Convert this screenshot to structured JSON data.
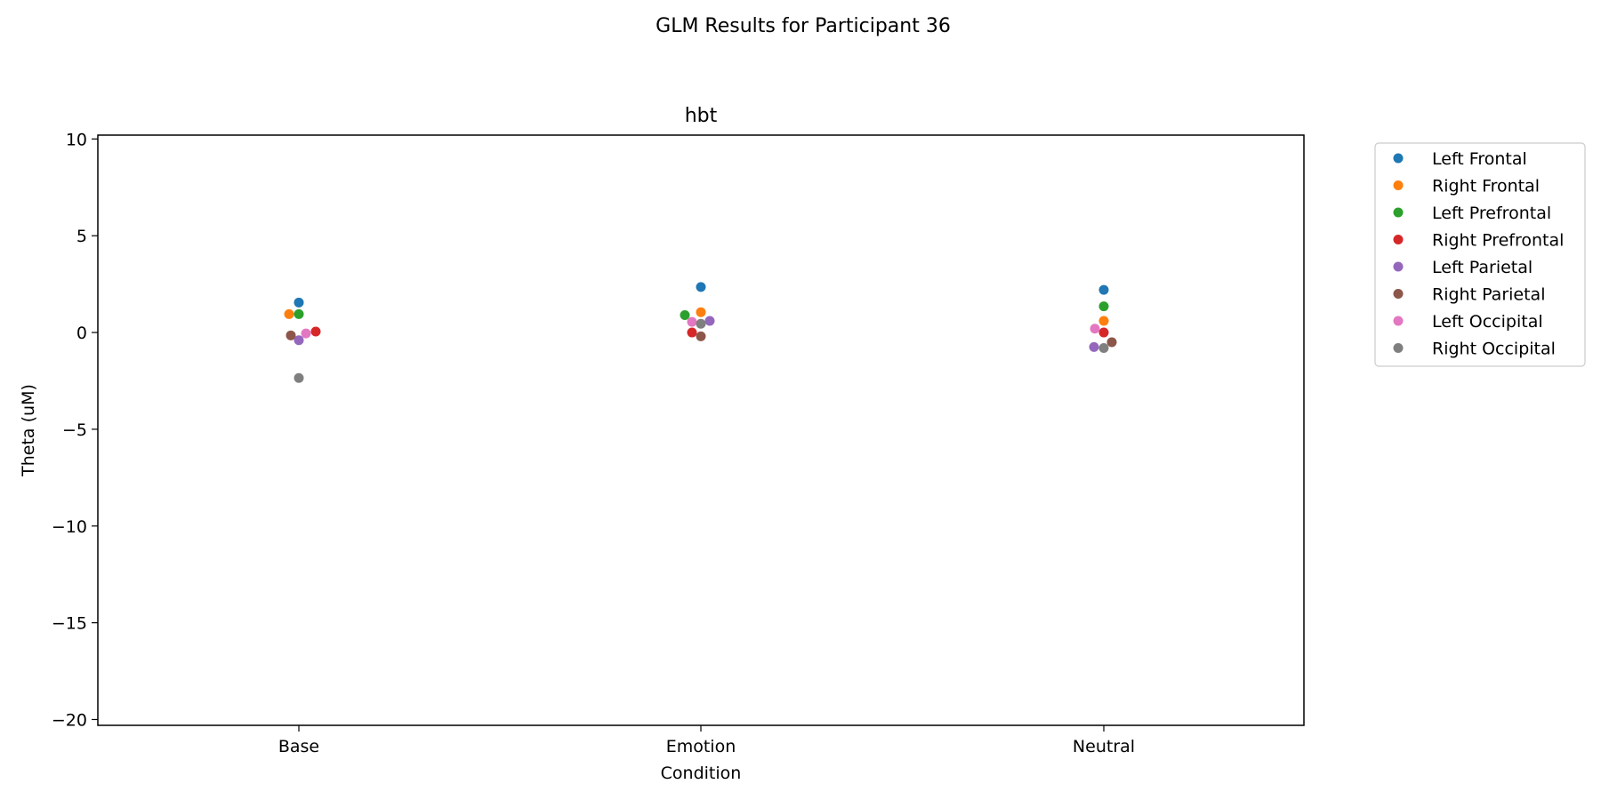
{
  "chart_data": {
    "type": "scatter",
    "suptitle": "GLM Results for Participant 36",
    "title": "hbt",
    "xlabel": "Condition",
    "ylabel": "Theta (uM)",
    "categories": [
      "Base",
      "Emotion",
      "Neutral"
    ],
    "ylim": [
      -20.3,
      10.2
    ],
    "yticks": [
      10,
      5,
      0,
      -5,
      -10,
      -15,
      -20
    ],
    "ytick_labels": [
      "10",
      "5",
      "0",
      "−5",
      "−10",
      "−15",
      "−20"
    ],
    "legend_position": "outside-right",
    "series": [
      {
        "name": "Left Frontal",
        "color": "#1f77b4",
        "values": [
          1.55,
          2.35,
          2.2
        ]
      },
      {
        "name": "Right Frontal",
        "color": "#ff7f0e",
        "values": [
          0.95,
          1.05,
          0.6
        ]
      },
      {
        "name": "Left Prefrontal",
        "color": "#2ca02c",
        "values": [
          0.95,
          0.9,
          1.35
        ]
      },
      {
        "name": "Right Prefrontal",
        "color": "#d62728",
        "values": [
          0.05,
          0.0,
          0.0
        ]
      },
      {
        "name": "Left Parietal",
        "color": "#9467bd",
        "values": [
          -0.4,
          0.6,
          -0.75
        ]
      },
      {
        "name": "Right Parietal",
        "color": "#8c564b",
        "values": [
          -0.15,
          -0.2,
          -0.5
        ]
      },
      {
        "name": "Left Occipital",
        "color": "#e377c2",
        "values": [
          -0.05,
          0.55,
          0.2
        ]
      },
      {
        "name": "Right Occipital",
        "color": "#7f7f7f",
        "values": [
          -2.35,
          0.45,
          -0.8
        ]
      }
    ]
  }
}
